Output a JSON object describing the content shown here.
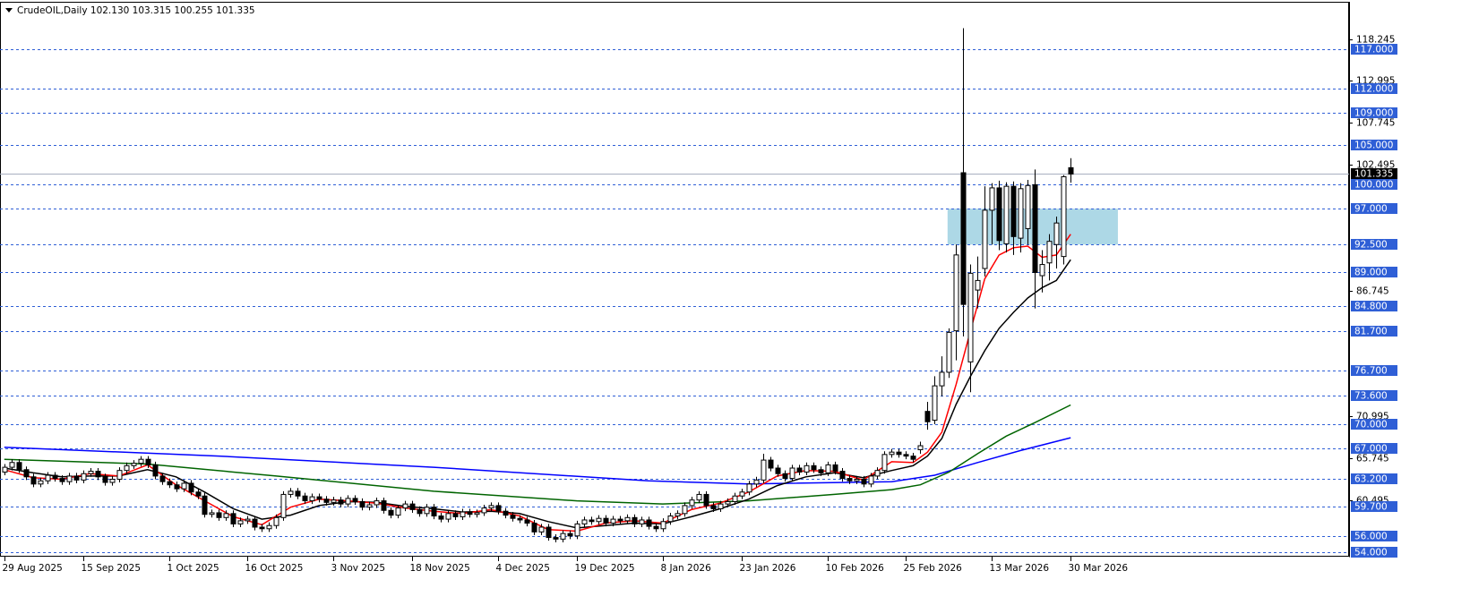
{
  "chart_data": {
    "type": "candlestick",
    "title": "CrudeOIL,Daily  102.130 103.315 100.255 101.335",
    "open": [
      64.0,
      64.6,
      65.2,
      64.3,
      63.4,
      62.5,
      62.9,
      63.6,
      63.2,
      62.8,
      63.5,
      63.0,
      63.8,
      64.1,
      63.4,
      62.7,
      63.1,
      64.2,
      64.8,
      65.1,
      65.6,
      64.9,
      63.5,
      62.8,
      62.4,
      61.9,
      62.6,
      61.5,
      61.0,
      58.7,
      58.9,
      58.3,
      58.8,
      57.5,
      57.9,
      58.1,
      57.1,
      56.9,
      57.3,
      58.3,
      61.2,
      61.6,
      61.0,
      60.4,
      60.9,
      60.6,
      60.2,
      60.5,
      60.0,
      60.7,
      60.3,
      59.6,
      59.9,
      60.4,
      59.2,
      58.6,
      59.5,
      60.0,
      59.3,
      58.8,
      59.6,
      58.5,
      58.1,
      58.8,
      58.4,
      59.0,
      58.7,
      58.9,
      59.5,
      59.8,
      59.1,
      58.6,
      58.2,
      58.0,
      57.6,
      56.5,
      57.1,
      55.8,
      55.6,
      56.3,
      56.0,
      57.5,
      58.0,
      57.8,
      58.2,
      57.6,
      58.1,
      57.9,
      58.3,
      57.5,
      58.0,
      57.2,
      56.9,
      57.8,
      58.5,
      58.8,
      59.8,
      60.5,
      61.2,
      59.8,
      59.4,
      60.0,
      60.3,
      61.0,
      61.5,
      62.5,
      63.0,
      65.5,
      64.5,
      63.8,
      63.2,
      64.5,
      64.0,
      64.8,
      64.3,
      63.9,
      64.9,
      64.1,
      63.2,
      62.9,
      63.1,
      62.5,
      63.5,
      64.2,
      66.2,
      66.5,
      66.2,
      66.0,
      66.8,
      71.6,
      70.5,
      74.8,
      76.5,
      81.7,
      101.5,
      77.8,
      86.8,
      89.5,
      96.8,
      99.6,
      92.6,
      99.8,
      93.3,
      94.5,
      100.0,
      88.6,
      90.2,
      92.5,
      91.0,
      102.13
    ],
    "high": [
      65.0,
      65.6,
      65.6,
      64.7,
      63.8,
      63.3,
      64.0,
      64.0,
      63.6,
      63.9,
      63.9,
      64.2,
      64.5,
      64.5,
      63.8,
      63.5,
      64.6,
      65.2,
      65.5,
      66.0,
      66.0,
      65.3,
      63.9,
      63.2,
      62.8,
      63.0,
      63.0,
      61.9,
      61.4,
      59.3,
      59.3,
      59.2,
      59.2,
      58.3,
      58.5,
      58.5,
      57.5,
      57.7,
      58.7,
      61.6,
      62.0,
      62.0,
      61.4,
      61.3,
      61.3,
      61.0,
      60.9,
      60.9,
      61.1,
      61.1,
      60.7,
      60.3,
      60.8,
      60.8,
      59.6,
      59.9,
      60.4,
      60.4,
      59.7,
      60.0,
      60.0,
      58.9,
      59.2,
      59.2,
      59.4,
      59.4,
      59.3,
      59.9,
      60.2,
      60.2,
      59.5,
      59.0,
      58.6,
      58.4,
      58.0,
      57.5,
      57.5,
      56.2,
      56.7,
      56.7,
      57.9,
      58.4,
      58.4,
      58.6,
      58.6,
      58.5,
      58.5,
      58.7,
      58.7,
      58.4,
      58.4,
      57.6,
      58.2,
      58.9,
      59.2,
      60.2,
      60.9,
      61.6,
      61.6,
      60.2,
      60.4,
      60.7,
      61.4,
      61.9,
      62.9,
      63.4,
      66.3,
      65.9,
      64.9,
      64.2,
      64.9,
      64.9,
      65.2,
      65.2,
      64.7,
      65.3,
      65.3,
      64.5,
      63.6,
      63.5,
      63.5,
      63.9,
      64.6,
      66.6,
      66.9,
      66.9,
      66.6,
      66.4,
      67.8,
      72.8,
      76.0,
      78.5,
      82.0,
      92.5,
      119.6,
      90.0,
      91.0,
      99.8,
      100.2,
      100.5,
      100.3,
      100.4,
      100.2,
      100.6,
      101.9,
      91.8,
      93.8,
      96.0,
      101.2,
      103.315
    ],
    "low": [
      63.6,
      64.2,
      63.9,
      63.0,
      62.1,
      62.1,
      62.5,
      62.8,
      62.4,
      62.4,
      62.6,
      62.6,
      63.4,
      63.0,
      62.3,
      62.3,
      62.7,
      63.8,
      64.4,
      64.7,
      64.5,
      63.1,
      62.4,
      62.0,
      61.5,
      61.5,
      61.1,
      60.6,
      58.3,
      58.3,
      57.9,
      57.9,
      57.1,
      57.1,
      57.5,
      56.7,
      56.5,
      56.5,
      56.9,
      57.9,
      60.8,
      60.6,
      60.0,
      60.0,
      60.2,
      59.8,
      59.8,
      59.6,
      59.6,
      59.9,
      59.2,
      59.2,
      59.5,
      58.8,
      58.2,
      58.2,
      59.1,
      58.9,
      58.4,
      58.4,
      58.1,
      57.7,
      57.7,
      58.0,
      58.0,
      58.3,
      58.3,
      58.5,
      59.1,
      58.7,
      58.2,
      57.8,
      57.6,
      57.2,
      56.1,
      56.1,
      55.4,
      55.2,
      55.2,
      55.6,
      55.6,
      57.1,
      57.4,
      57.4,
      57.2,
      57.2,
      57.5,
      57.5,
      57.1,
      57.1,
      56.8,
      56.5,
      56.5,
      57.4,
      58.1,
      58.4,
      59.4,
      60.1,
      59.4,
      59.0,
      59.0,
      59.6,
      59.9,
      60.6,
      61.1,
      62.1,
      62.6,
      64.1,
      63.4,
      62.8,
      62.8,
      63.6,
      63.6,
      63.9,
      63.5,
      63.5,
      63.7,
      62.8,
      62.5,
      62.5,
      62.1,
      62.1,
      63.1,
      63.8,
      65.8,
      65.8,
      65.6,
      65.2,
      66.3,
      69.3,
      70.0,
      73.5,
      75.8,
      78.0,
      81.0,
      74.0,
      84.5,
      88.5,
      92.5,
      91.8,
      91.5,
      91.2,
      91.5,
      92.5,
      84.5,
      86.5,
      88.0,
      89.5,
      90.0,
      100.255
    ],
    "close": [
      64.6,
      65.2,
      64.3,
      63.4,
      62.5,
      62.9,
      63.6,
      63.2,
      62.8,
      63.5,
      63.0,
      63.8,
      64.1,
      63.4,
      62.7,
      63.1,
      64.2,
      64.8,
      65.1,
      65.6,
      64.9,
      63.5,
      62.8,
      62.4,
      61.9,
      62.6,
      61.5,
      61.0,
      58.7,
      58.9,
      58.3,
      58.8,
      57.5,
      57.9,
      58.1,
      57.1,
      56.9,
      57.3,
      58.3,
      61.2,
      61.6,
      61.0,
      60.4,
      60.9,
      60.6,
      60.2,
      60.5,
      60.0,
      60.7,
      60.3,
      59.6,
      59.9,
      60.4,
      59.2,
      58.6,
      59.5,
      60.0,
      59.3,
      58.8,
      59.6,
      58.5,
      58.1,
      58.8,
      58.4,
      59.0,
      58.7,
      58.9,
      59.5,
      59.8,
      59.1,
      58.6,
      58.2,
      58.0,
      57.6,
      56.5,
      57.1,
      55.8,
      55.6,
      56.3,
      56.0,
      57.5,
      58.0,
      57.8,
      58.2,
      57.6,
      58.1,
      57.9,
      58.3,
      57.5,
      58.0,
      57.2,
      56.9,
      57.8,
      58.5,
      58.8,
      59.8,
      60.5,
      61.2,
      59.8,
      59.4,
      60.0,
      60.3,
      61.0,
      61.5,
      62.5,
      63.0,
      65.5,
      64.5,
      63.8,
      63.2,
      64.5,
      64.0,
      64.8,
      64.3,
      63.9,
      64.9,
      64.1,
      63.2,
      62.9,
      63.1,
      62.5,
      63.5,
      64.2,
      66.2,
      66.5,
      66.2,
      66.0,
      65.6,
      67.3,
      70.3,
      74.8,
      76.5,
      81.5,
      91.2,
      85.0,
      88.9,
      88.0,
      96.8,
      99.6,
      93.0,
      99.8,
      93.5,
      99.5,
      99.9,
      89.0,
      90.0,
      92.9,
      95.2,
      101.0,
      101.335
    ],
    "series": [
      {
        "color": "#0000ff",
        "x": [
          0,
          30,
          60,
          90,
          104,
          124,
          130,
          136,
          142,
          149
        ],
        "values": [
          67.1,
          66.0,
          64.6,
          62.9,
          62.5,
          62.8,
          63.6,
          65.2,
          66.7,
          68.3
        ]
      },
      {
        "color": "#006400",
        "x": [
          0,
          20,
          38,
          60,
          80,
          92,
          104,
          116,
          124,
          128,
          132,
          136,
          140,
          144,
          149
        ],
        "values": [
          65.6,
          65.0,
          63.5,
          61.6,
          60.4,
          60.0,
          60.4,
          61.2,
          61.8,
          62.4,
          64.0,
          66.3,
          68.5,
          70.2,
          72.4
        ]
      },
      {
        "color": "#000000",
        "x": [
          0,
          4,
          8,
          12,
          16,
          20,
          24,
          28,
          32,
          36,
          40,
          44,
          48,
          52,
          56,
          60,
          64,
          68,
          72,
          76,
          80,
          84,
          88,
          92,
          96,
          100,
          104,
          108,
          112,
          116,
          120,
          124,
          127,
          129,
          131,
          133,
          135,
          137,
          139,
          141,
          143,
          145,
          147,
          149
        ],
        "values": [
          64.5,
          63.9,
          63.4,
          63.5,
          63.5,
          64.3,
          63.4,
          61.5,
          59.4,
          58.1,
          58.6,
          59.8,
          60.3,
          60.2,
          59.7,
          59.4,
          59.0,
          59.1,
          58.8,
          57.8,
          57.0,
          57.3,
          57.6,
          57.5,
          58.4,
          59.4,
          60.6,
          62.3,
          63.4,
          63.9,
          63.3,
          64.2,
          64.8,
          66.0,
          68.2,
          72.5,
          76.0,
          79.2,
          82.0,
          84.0,
          85.8,
          87.1,
          88.0,
          90.6
        ]
      },
      {
        "color": "#ff0000",
        "x": [
          0,
          4,
          8,
          12,
          16,
          20,
          24,
          28,
          32,
          36,
          40,
          44,
          48,
          52,
          56,
          60,
          64,
          68,
          72,
          76,
          80,
          84,
          88,
          92,
          96,
          100,
          104,
          108,
          112,
          116,
          120,
          124,
          127,
          129,
          131,
          133,
          135,
          137,
          139,
          141,
          143,
          145,
          147,
          149
        ],
        "values": [
          64.3,
          63.3,
          63.1,
          63.8,
          63.5,
          64.9,
          62.4,
          60.4,
          58.4,
          57.4,
          59.6,
          60.6,
          60.4,
          60.1,
          59.5,
          59.1,
          58.8,
          59.3,
          58.5,
          56.8,
          56.6,
          57.6,
          57.9,
          57.6,
          59.3,
          60.1,
          61.5,
          63.5,
          64.2,
          64.1,
          63.0,
          65.3,
          65.2,
          66.5,
          69.0,
          75.0,
          81.7,
          88.2,
          91.2,
          92.1,
          92.3,
          90.9,
          91.2,
          93.8
        ]
      }
    ],
    "zone": {
      "color": "#add8e6",
      "x": [
        131.8,
        155.6
      ],
      "y": [
        92.5,
        97
      ]
    },
    "level_color": "#2f5fd6",
    "levels": [
      {
        "value": 117,
        "label": "117.000"
      },
      {
        "value": 112,
        "label": "112.000"
      },
      {
        "value": 109,
        "label": "109.000"
      },
      {
        "value": 105,
        "label": "105.000"
      },
      {
        "value": 100,
        "label": "100.000"
      },
      {
        "value": 97,
        "label": "97.000"
      },
      {
        "value": 92.5,
        "label": "92.500"
      },
      {
        "value": 89,
        "label": "89.000"
      },
      {
        "value": 84.8,
        "label": "84.800"
      },
      {
        "value": 81.7,
        "label": "81.700"
      },
      {
        "value": 76.7,
        "label": "76.700"
      },
      {
        "value": 73.6,
        "label": "73.600"
      },
      {
        "value": 70,
        "label": "70.000"
      },
      {
        "value": 67,
        "label": "67.000"
      },
      {
        "value": 63.2,
        "label": "63.200"
      },
      {
        "value": 59.7,
        "label": "59.700"
      },
      {
        "value": 56,
        "label": "56.000"
      },
      {
        "value": 54,
        "label": "54.000"
      }
    ],
    "ylim": [
      53.4,
      122.8
    ],
    "yticks": [
      118.245,
      112.995,
      107.745,
      102.495,
      86.745,
      70.995,
      65.745,
      60.495
    ],
    "xlim": [
      -0.6,
      187.9
    ],
    "xticks": [
      {
        "value": 0,
        "label": "29 Aug 2025"
      },
      {
        "value": 11,
        "label": "15 Sep 2025"
      },
      {
        "value": 23,
        "label": "1 Oct 2025"
      },
      {
        "value": 34,
        "label": "16 Oct 2025"
      },
      {
        "value": 46,
        "label": "3 Nov 2025"
      },
      {
        "value": 57,
        "label": "18 Nov 2025"
      },
      {
        "value": 69,
        "label": "4 Dec 2025"
      },
      {
        "value": 80,
        "label": "19 Dec 2025"
      },
      {
        "value": 92,
        "label": "8 Jan 2026"
      },
      {
        "value": 103,
        "label": "23 Jan 2026"
      },
      {
        "value": 115,
        "label": "10 Feb 2026"
      },
      {
        "value": 126,
        "label": "25 Feb 2026"
      },
      {
        "value": 138,
        "label": "13 Mar 2026"
      },
      {
        "value": 149,
        "label": "30 Mar 2026"
      }
    ]
  }
}
